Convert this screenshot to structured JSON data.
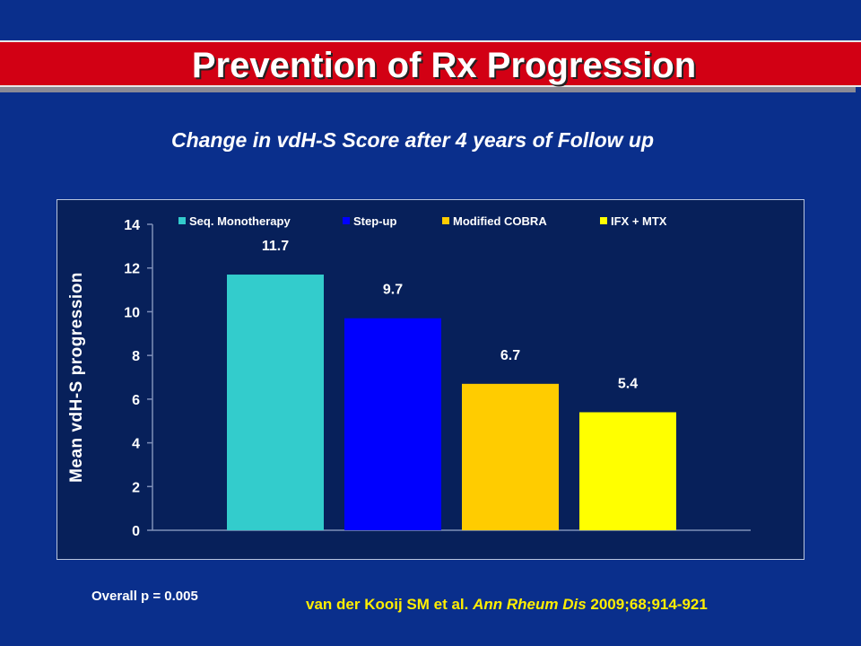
{
  "slide": {
    "title": "Prevention of Rx Progression",
    "subtitle": "Change in vdH-S Score after 4 years of Follow up",
    "pvalue": "Overall p = 0.005",
    "citation": {
      "authors": "van der Kooij SM et al. ",
      "journal": "Ann Rheum Dis",
      "details": " 2009;68;914-921"
    }
  },
  "chart_data": {
    "type": "bar",
    "title": "",
    "xlabel": "",
    "ylabel": "Mean vdH-S progression",
    "ylim": [
      0,
      14
    ],
    "yticks": [
      0,
      2,
      4,
      6,
      8,
      10,
      12,
      14
    ],
    "grid": false,
    "legend_position": "top",
    "categories": [
      "Seq. Monotherapy",
      "Step-up",
      "Modified COBRA",
      "IFX + MTX"
    ],
    "values": [
      11.7,
      9.7,
      6.7,
      5.4
    ],
    "value_labels": [
      "11.7",
      "9.7",
      "6.7",
      "5.4"
    ],
    "colors": [
      "#33cccc",
      "#0000ff",
      "#ffcc00",
      "#ffff00"
    ]
  }
}
